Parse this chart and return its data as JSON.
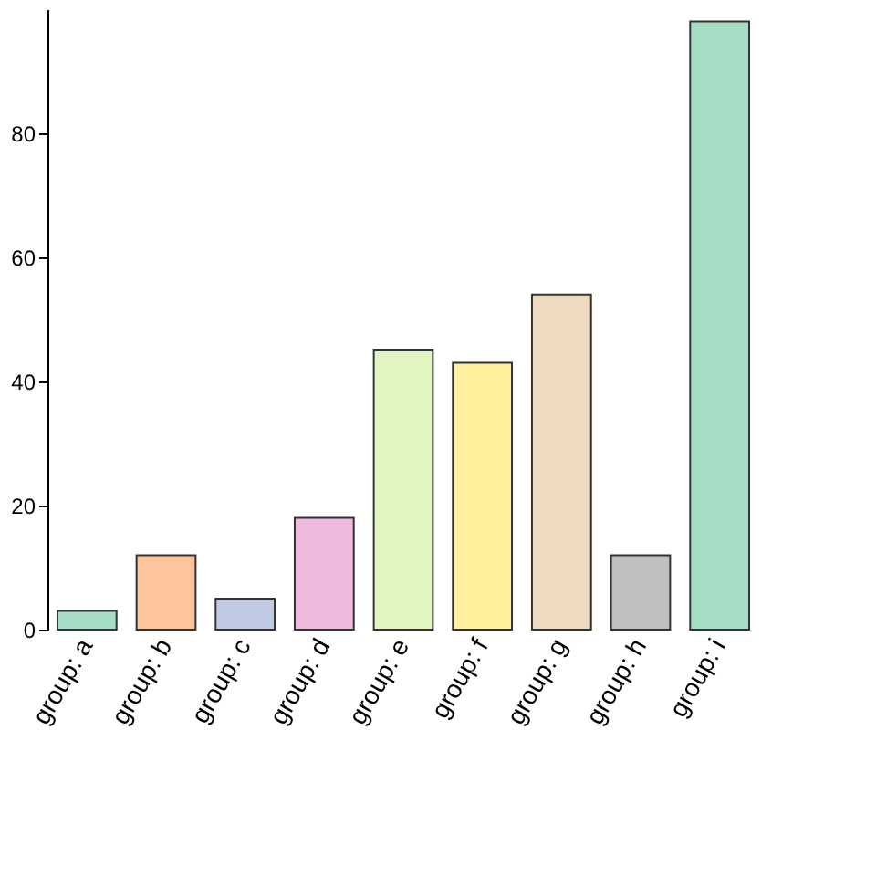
{
  "chart_data": {
    "type": "bar",
    "categories": [
      "group: a",
      "group: b",
      "group: c",
      "group: d",
      "group: e",
      "group: f",
      "group: g",
      "group: h",
      "group: i"
    ],
    "values": [
      3,
      12,
      5,
      18,
      45,
      43,
      54,
      12,
      98
    ],
    "colors": [
      "#a5dec5",
      "#fdc59e",
      "#c0cae2",
      "#efbade",
      "#e1f5c1",
      "#fff09e",
      "#eddac0",
      "#c0c0c0",
      "#a5dec5"
    ],
    "ylim": [
      0,
      100
    ],
    "yticks": [
      0,
      20,
      40,
      60,
      80
    ],
    "grid": false
  }
}
